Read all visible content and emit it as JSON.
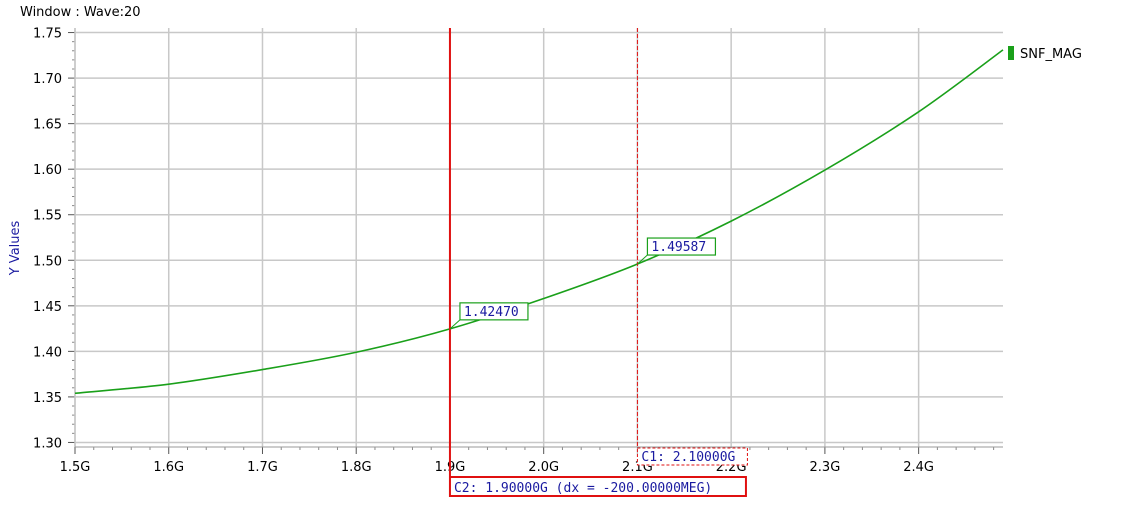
{
  "window": {
    "title": "Window : Wave:20"
  },
  "colors": {
    "series": "#1aa01a",
    "cursor": "#e01010",
    "grid": "#c8c8c8",
    "label_text": "#1a1aa0"
  },
  "chart_data": {
    "type": "line",
    "ylabel": "Y Values",
    "xlim": [
      1.5,
      2.49
    ],
    "ylim": [
      1.295,
      1.755
    ],
    "grid": true,
    "legend_position": "top-right",
    "x_ticks": [
      1.5,
      1.6,
      1.7,
      1.8,
      1.9,
      2.0,
      2.1,
      2.2,
      2.3,
      2.4
    ],
    "x_tick_labels": [
      "1.5G",
      "1.6G",
      "1.7G",
      "1.8G",
      "1.9G",
      "2.0G",
      "2.1G",
      "2.2G",
      "2.3G",
      "2.4G"
    ],
    "y_ticks": [
      1.3,
      1.35,
      1.4,
      1.45,
      1.5,
      1.55,
      1.6,
      1.65,
      1.7,
      1.75
    ],
    "y_tick_labels": [
      "1.30",
      "1.35",
      "1.40",
      "1.45",
      "1.50",
      "1.55",
      "1.60",
      "1.65",
      "1.70",
      "1.75"
    ],
    "series": [
      {
        "name": "SNF_MAG",
        "x": [
          1.5,
          1.6,
          1.7,
          1.8,
          1.9,
          2.0,
          2.1,
          2.2,
          2.3,
          2.4,
          2.49
        ],
        "y": [
          1.354,
          1.364,
          1.38,
          1.399,
          1.4247,
          1.458,
          1.49587,
          1.543,
          1.599,
          1.663,
          1.731
        ]
      }
    ],
    "markers": [
      {
        "label": "1.42470",
        "x": 1.9,
        "y": 1.4247
      },
      {
        "label": "1.49587",
        "x": 2.1,
        "y": 1.49587
      }
    ],
    "cursors": [
      {
        "id": "C1",
        "x": 2.1,
        "style": "dashed",
        "label": "C1: 2.10000G"
      },
      {
        "id": "C2",
        "x": 1.9,
        "style": "solid",
        "label": "C2: 1.90000G (dx = -200.00000MEG)"
      }
    ]
  }
}
